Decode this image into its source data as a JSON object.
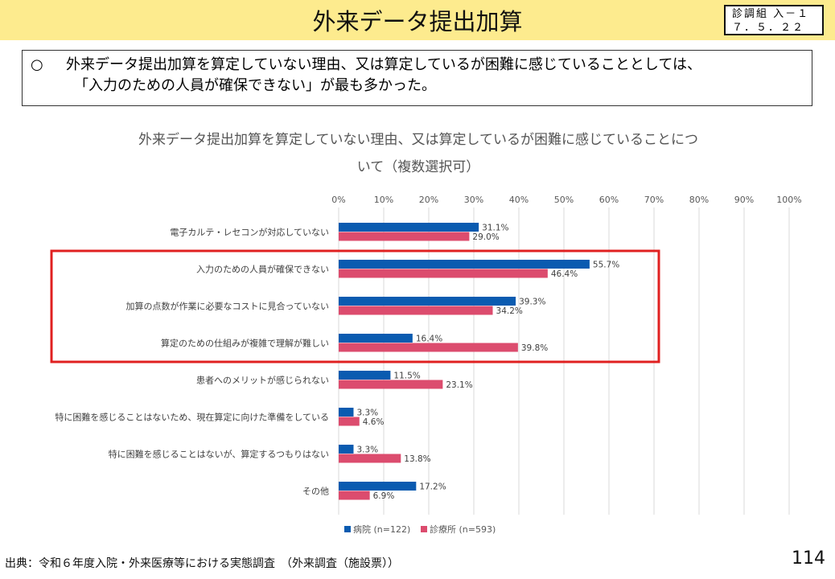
{
  "header": {
    "title": "外来データ提出加算",
    "stamp_line1": "診調組 入－１",
    "stamp_line2": "７．５．２２"
  },
  "summary": {
    "bullet": "○",
    "line1": "外来データ提出加算を算定していない理由、又は算定しているが困難に感じていることとしては、",
    "line2": "「入力のための人員が確保できない」が最も多かった。"
  },
  "chart_data": {
    "type": "bar",
    "orientation": "horizontal",
    "title_line1": "外来データ提出加算を算定していない理由、又は算定しているが困難に感じていることにつ",
    "title_line2": "いて（複数選択可）",
    "xlim": [
      0,
      100
    ],
    "x_ticks": [
      "0%",
      "10%",
      "20%",
      "30%",
      "40%",
      "50%",
      "60%",
      "70%",
      "80%",
      "90%",
      "100%"
    ],
    "grid": true,
    "legend_position": "bottom",
    "categories": [
      "電子カルテ・レセコンが対応していない",
      "入力のための人員が確保できない",
      "加算の点数が作業に必要なコストに見合っていない",
      "算定のための仕組みが複雑で理解が難しい",
      "患者へのメリットが感じられない",
      "特に困難を感じることはないため、現在算定に向けた準備をしている",
      "特に困難を感じることはないが、算定するつもりはない",
      "その他"
    ],
    "series": [
      {
        "name": "病院 (n=122)",
        "color": "#0a5bb0",
        "values": [
          31.1,
          55.7,
          39.3,
          16.4,
          11.5,
          3.3,
          3.3,
          17.2
        ],
        "labels": [
          "31.1%",
          "55.7%",
          "39.3%",
          "16.4%",
          "11.5%",
          "3.3%",
          "3.3%",
          "17.2%"
        ]
      },
      {
        "name": "診療所 (n=593)",
        "color": "#dc4c6e",
        "values": [
          29.0,
          46.4,
          34.2,
          39.8,
          23.1,
          4.6,
          13.8,
          6.9
        ],
        "labels": [
          "29.0%",
          "46.4%",
          "34.2%",
          "39.8%",
          "23.1%",
          "4.6%",
          "13.8%",
          "6.9%"
        ]
      }
    ],
    "highlight_color": "#e02020"
  },
  "footer": {
    "source": "出典：令和６年度入院・外来医療等における実態調査　（外来調査（施設票））",
    "page_number": "114"
  }
}
